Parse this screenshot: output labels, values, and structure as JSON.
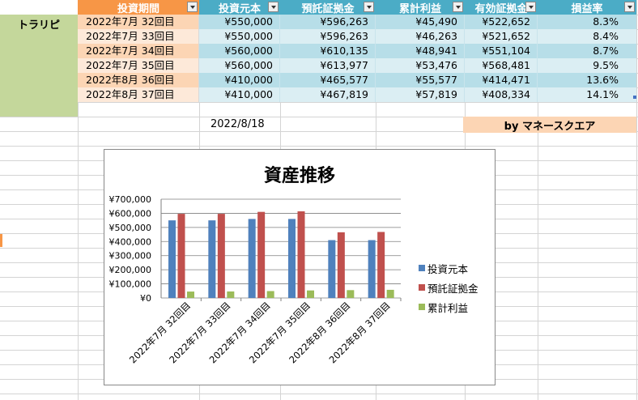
{
  "headers": {
    "period": "投資期間",
    "principal": "投資元本",
    "deposit": "預託証拠金",
    "profit": "累計利益",
    "effective": "有効証拠金",
    "rate": "損益率"
  },
  "name": "トラリピ",
  "rows": [
    {
      "period": "2022年7月  32回目",
      "principal": "¥550,000",
      "deposit": "¥596,263",
      "profit": "¥45,490",
      "effective": "¥522,652",
      "rate": "8.3%"
    },
    {
      "period": "2022年7月  33回目",
      "principal": "¥550,000",
      "deposit": "¥596,263",
      "profit": "¥46,263",
      "effective": "¥521,652",
      "rate": "8.4%"
    },
    {
      "period": "2022年7月  34回目",
      "principal": "¥560,000",
      "deposit": "¥610,135",
      "profit": "¥48,941",
      "effective": "¥551,104",
      "rate": "8.7%"
    },
    {
      "period": "2022年7月  35回目",
      "principal": "¥560,000",
      "deposit": "¥613,977",
      "profit": "¥53,476",
      "effective": "¥568,481",
      "rate": "9.5%"
    },
    {
      "period": "2022年8月  36回目",
      "principal": "¥410,000",
      "deposit": "¥465,577",
      "profit": "¥55,577",
      "effective": "¥414,471",
      "rate": "13.6%"
    },
    {
      "period": "2022年8月  37回目",
      "principal": "¥410,000",
      "deposit": "¥467,819",
      "profit": "¥57,819",
      "effective": "¥408,334",
      "rate": "14.1%"
    }
  ],
  "date": "2022/8/18",
  "byline": "by マネースクエア",
  "colors": {
    "principal": "#4f81bd",
    "deposit": "#c0504d",
    "profit": "#9bbb59",
    "period_header": "#f79646",
    "teal_header": "#4bacc6",
    "name_cell": "#c4d79b"
  },
  "chart_data": {
    "type": "bar",
    "title": "資産推移",
    "categories": [
      "2022年7月  32回目",
      "2022年7月  33回目",
      "2022年7月  34回目",
      "2022年7月  35回目",
      "2022年8月  36回目",
      "2022年8月  37回目"
    ],
    "series": [
      {
        "name": "投資元本",
        "values": [
          550000,
          550000,
          560000,
          560000,
          410000,
          410000
        ]
      },
      {
        "name": "預託証拠金",
        "values": [
          596263,
          596263,
          610135,
          613977,
          465577,
          467819
        ]
      },
      {
        "name": "累計利益",
        "values": [
          45490,
          46263,
          48941,
          53476,
          55577,
          57819
        ]
      }
    ],
    "yticks": [
      "¥0",
      "¥100,000",
      "¥200,000",
      "¥300,000",
      "¥400,000",
      "¥500,000",
      "¥600,000",
      "¥700,000"
    ],
    "ylim": [
      0,
      700000
    ],
    "grid": true,
    "legend": "right"
  }
}
